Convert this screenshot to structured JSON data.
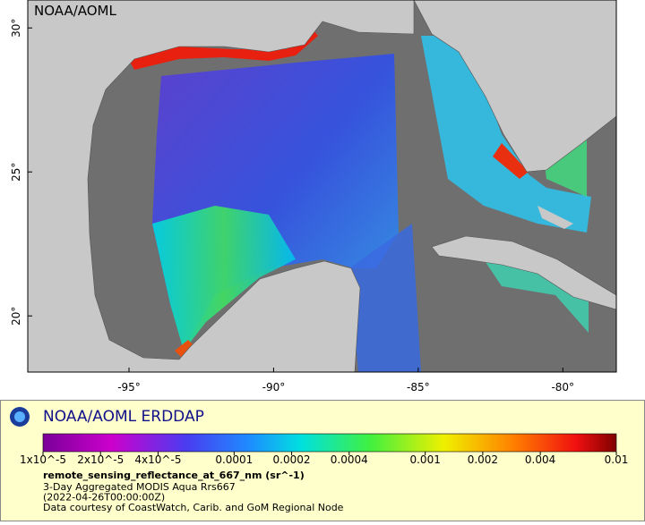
{
  "map": {
    "watermark": "NOAA/AOML",
    "xlim": [
      -98.5,
      -78.15
    ],
    "ylim": [
      18.05,
      30.97
    ],
    "xticks": [
      {
        "value": -95,
        "label": "-95°"
      },
      {
        "value": -90,
        "label": "-90°"
      },
      {
        "value": -85,
        "label": "-85°"
      },
      {
        "value": -80,
        "label": "-80°"
      }
    ],
    "yticks": [
      {
        "value": 30,
        "label": "30°"
      },
      {
        "value": 25,
        "label": "25°"
      },
      {
        "value": 20,
        "label": "20°"
      }
    ]
  },
  "legend": {
    "title": "NOAA/AOML ERDDAP",
    "colorbar": {
      "scale": "log",
      "lim": [
        1e-05,
        0.01
      ],
      "ticks": [
        {
          "value": 1e-05,
          "label": "1x10^-5"
        },
        {
          "value": 2e-05,
          "label": "2x10^-5"
        },
        {
          "value": 4e-05,
          "label": "4x10^-5"
        },
        {
          "value": 0.0001,
          "label": "0.0001"
        },
        {
          "value": 0.0002,
          "label": "0.0002"
        },
        {
          "value": 0.0004,
          "label": "0.0004"
        },
        {
          "value": 0.001,
          "label": "0.001"
        },
        {
          "value": 0.002,
          "label": "0.002"
        },
        {
          "value": 0.004,
          "label": "0.004"
        },
        {
          "value": 0.01,
          "label": "0.01"
        }
      ]
    },
    "variable": "remote_sensing_reflectance_at_667_nm (sr^-1)",
    "lines": [
      "3-Day Aggregated MODIS Aqua Rrs667",
      "(2022-04-26T00:00:00Z)",
      "Data courtesy of CoastWatch, Carib. and GoM Regional Node"
    ]
  }
}
